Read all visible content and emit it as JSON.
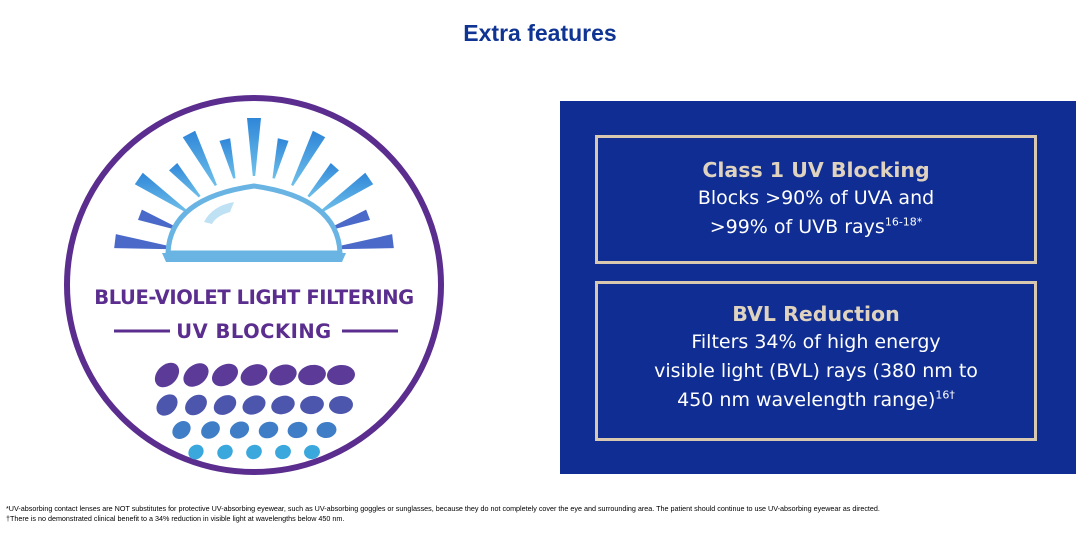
{
  "page": {
    "title": "Extra features"
  },
  "badge": {
    "line1": "BLUE-VIOLET LIGHT FILTERING",
    "line2": "UV BLOCKING",
    "icons": [
      "sun-rays-icon",
      "contact-lens-icon",
      "light-particles-icon"
    ],
    "colors": {
      "ring": "#5a2d8e",
      "rays": "#3f8fd6",
      "lens": "#6ab4e4",
      "particles_top": "#5b3a98",
      "particles_bottom": "#3aa8dc"
    }
  },
  "features": [
    {
      "title": "Class 1 UV Blocking",
      "line1": "Blocks >90% of UVA and",
      "line2": ">99% of UVB rays",
      "sup": "16-18*"
    },
    {
      "title": "BVL Reduction",
      "line1": "Filters 34% of high energy",
      "line2": "visible light (BVL) rays (380 nm to",
      "line3": "450 nm wavelength range)",
      "sup": "16†"
    }
  ],
  "footnotes": [
    "*UV-absorbing contact lenses are NOT substitutes for protective UV-absorbing eyewear, such as UV-absorbing goggles or sunglasses, because they do not completely cover the eye and surrounding area. The patient should continue to use UV-absorbing eyewear as directed.",
    "†There is no demonstrated clinical benefit to a 34% reduction in visible light at wavelengths below 450 nm."
  ],
  "colors": {
    "title": "#0f3493",
    "panel_bg": "#0f2d92",
    "box_border": "#d8c8b0",
    "box_title": "#dfd3c0"
  }
}
